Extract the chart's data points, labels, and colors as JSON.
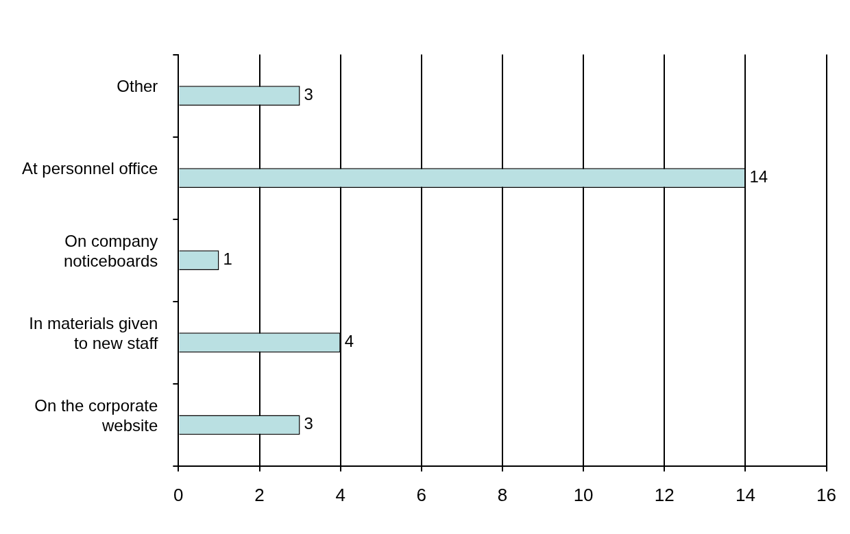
{
  "chart_data": {
    "type": "bar",
    "orientation": "horizontal",
    "categories": [
      "Other",
      "At personnel office",
      "On company noticeboards",
      "In materials given to new staff",
      "On the corporate website"
    ],
    "values": [
      3,
      14,
      1,
      4,
      3
    ],
    "color": "#bae0e2",
    "xlim": [
      0,
      16
    ],
    "xticks": [
      0,
      2,
      4,
      6,
      8,
      10,
      12,
      14,
      16
    ],
    "grid": "x",
    "data_labels": true,
    "legend": false
  }
}
